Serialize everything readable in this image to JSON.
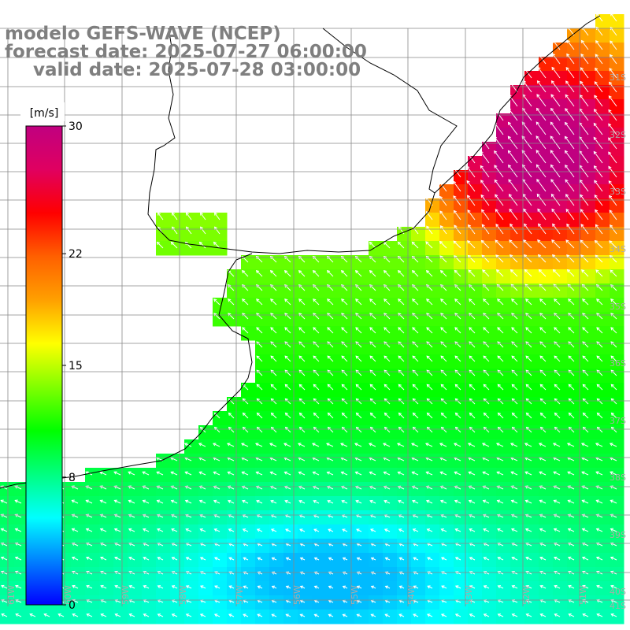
{
  "title": {
    "line1": "modelo GEFS-WAVE (NCEP)",
    "line2": "forecast date: 2025-07-27 06:00:00",
    "line3": "valid date: 2025-07-28 03:00:00"
  },
  "colorbar": {
    "unit": "[m/s]",
    "ticks": [
      {
        "value": 30,
        "label": "30"
      },
      {
        "value": 22,
        "label": "22"
      },
      {
        "value": 15,
        "label": "15"
      },
      {
        "value": 8,
        "label": "8"
      },
      {
        "value": 0,
        "label": "0"
      }
    ],
    "min": 0,
    "max": 30,
    "colors": [
      "#0000ff",
      "#0080ff",
      "#00ffff",
      "#00ff80",
      "#00ff00",
      "#80ff00",
      "#ffff00",
      "#ffa000",
      "#ff6000",
      "#ff0000",
      "#e00060",
      "#c00080"
    ]
  },
  "lat_labels": [
    "31S",
    "32S",
    "33S",
    "34S",
    "35S",
    "36S",
    "37S",
    "38S",
    "39S",
    "40S",
    "41S"
  ],
  "lon_labels": [
    "61W",
    "60W",
    "59W",
    "58W",
    "57W",
    "56W",
    "55W",
    "54W",
    "53W",
    "52W",
    "51W"
  ],
  "colors": {
    "land": "#ffffff",
    "grid": "#888888",
    "coast": "#000000",
    "arrow": "#ffffff"
  }
}
